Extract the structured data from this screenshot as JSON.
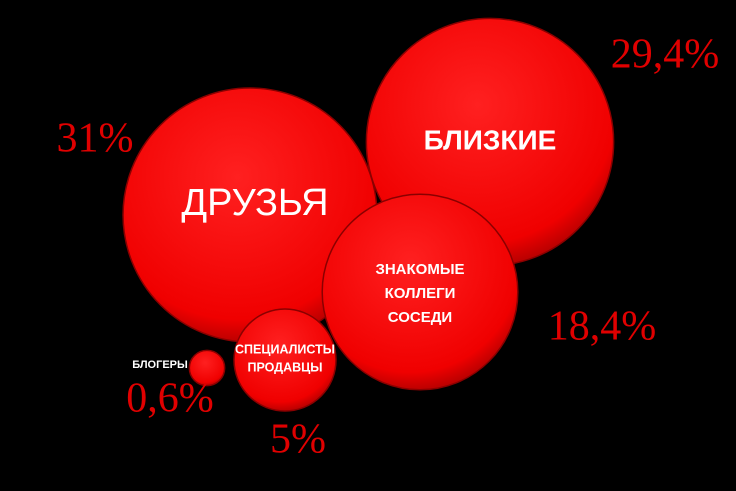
{
  "chart_data": {
    "type": "bubble",
    "categories": [
      [
        "ДРУЗЬЯ"
      ],
      [
        "БЛИЗКИЕ"
      ],
      [
        "ЗНАКОМЫЕ",
        "КОЛЛЕГИ",
        "СОСЕДИ"
      ],
      [
        "СПЕЦИАЛИСТЫ",
        "ПРОДАВЦЫ"
      ],
      [
        "БЛОГЕРЫ"
      ]
    ],
    "values": [
      31,
      29.4,
      18.4,
      5,
      0.6
    ],
    "value_labels": [
      "31%",
      "29,4%",
      "18,4%",
      "5%",
      "0,6%"
    ],
    "color": "#ff0000"
  }
}
